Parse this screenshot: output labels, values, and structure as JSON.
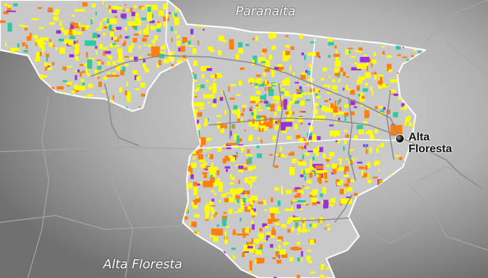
{
  "labels": {
    "region_north": "Paranaíta",
    "region_south": "Alta Floresta",
    "city_line1": "Alta",
    "city_line2": "Floresta"
  },
  "colors": {
    "background": "#6f6f6f",
    "vignette": "#dcdcdc",
    "municipality_fill": "#c9c9c9",
    "municipality_border": "#ffffff",
    "roads": "#8a8a8a",
    "boundaries": "#a5a5a5",
    "patch_colors": [
      "#ffff00",
      "#ff7f0e",
      "#9b30d9",
      "#2ec9a0"
    ]
  },
  "icons": {
    "city_marker": "black-dot-icon"
  }
}
